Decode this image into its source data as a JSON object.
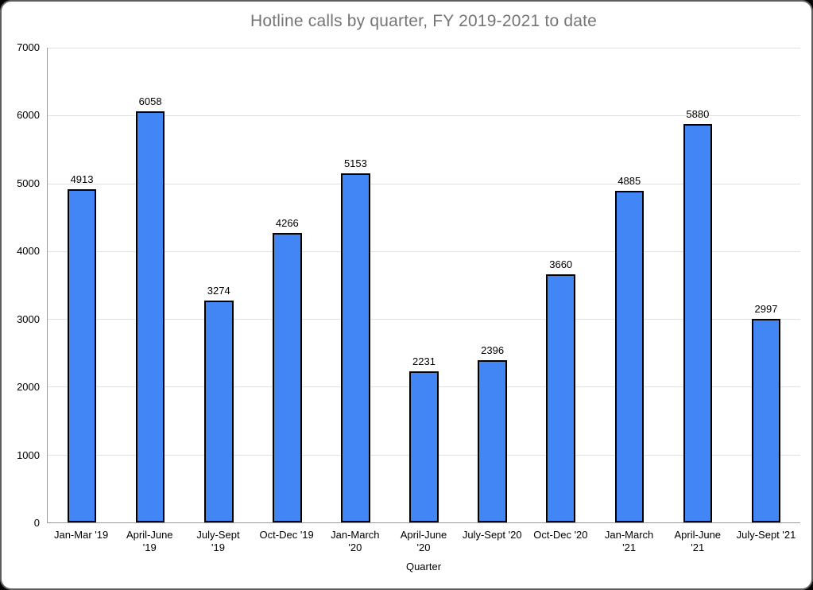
{
  "chart_data": {
    "type": "bar",
    "title": "Hotline calls by quarter, FY 2019-2021 to date",
    "xlabel": "Quarter",
    "ylabel": "",
    "categories": [
      "Jan-Mar '19",
      "April-June '19",
      "July-Sept '19",
      "Oct-Dec '19",
      "Jan-March '20",
      "April-June '20",
      "July-Sept '20",
      "Oct-Dec '20",
      "Jan-March '21",
      "April-June '21",
      "July-Sept '21"
    ],
    "category_lines": [
      [
        "Jan-Mar '19"
      ],
      [
        "April-June",
        "'19"
      ],
      [
        "July-Sept",
        "'19"
      ],
      [
        "Oct-Dec '19"
      ],
      [
        "Jan-March",
        "'20"
      ],
      [
        "April-June",
        "'20"
      ],
      [
        "July-Sept '20"
      ],
      [
        "Oct-Dec '20"
      ],
      [
        "Jan-March",
        "'21"
      ],
      [
        "April-June",
        "'21"
      ],
      [
        "July-Sept '21"
      ]
    ],
    "values": [
      4913,
      6058,
      3274,
      4266,
      5153,
      2231,
      2396,
      3660,
      4885,
      5880,
      2997
    ],
    "ylim": [
      0,
      7000
    ],
    "yticks": [
      0,
      1000,
      2000,
      3000,
      4000,
      5000,
      6000,
      7000
    ],
    "grid": true,
    "legend_position": "none",
    "colors": {
      "bar_fill": "#4285f4",
      "bar_border": "#000000",
      "title": "#757575",
      "axis_line": "#999999",
      "gridline": "#e0e0e0",
      "tick_text": "#000000"
    }
  }
}
